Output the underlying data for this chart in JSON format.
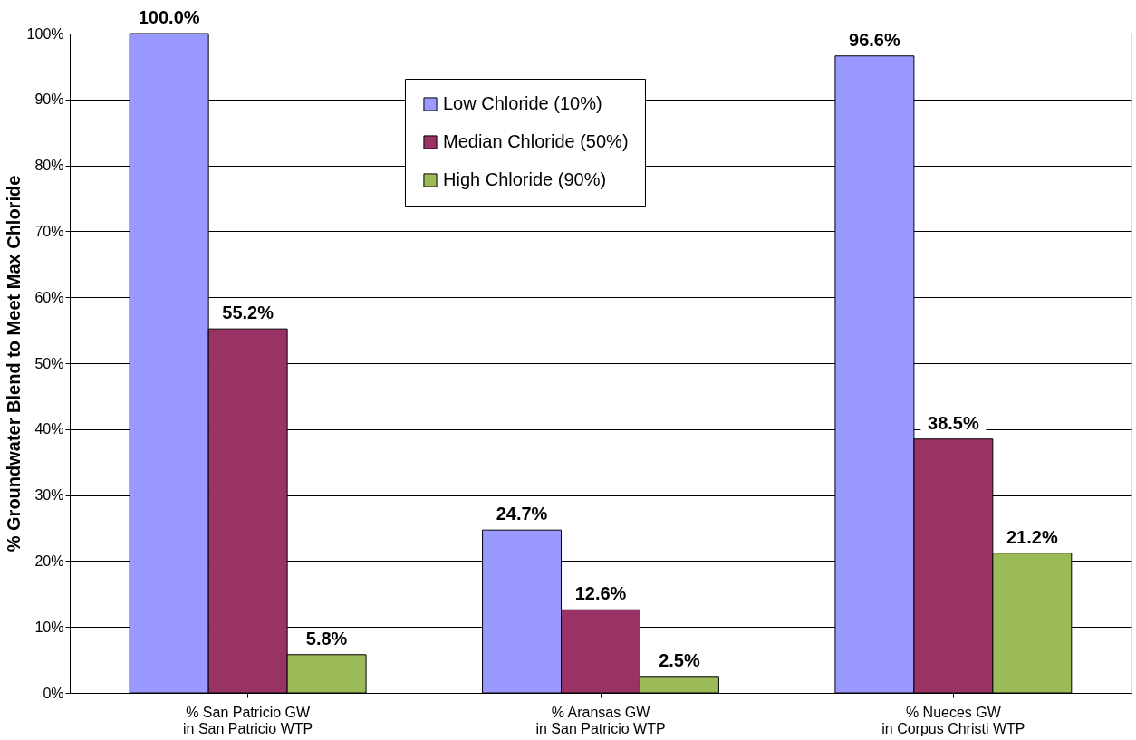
{
  "chart_data": {
    "type": "bar",
    "ylabel": "% Groundwater Blend to Meet Max Chloride",
    "categories": [
      "% San Patricio GW\nin San Patricio WTP",
      "% Aransas GW\nin San Patricio WTP",
      "% Nueces GW\nin Corpus Christi WTP"
    ],
    "series": [
      {
        "name": "Low Chloride (10%)",
        "color": "#9999ff",
        "values": [
          100.0,
          24.7,
          96.6
        ],
        "value_labels": [
          "100.0%",
          "24.7%",
          "96.6%"
        ]
      },
      {
        "name": "Median Chloride (50%)",
        "color": "#993366",
        "values": [
          55.2,
          12.6,
          38.5
        ],
        "value_labels": [
          "55.2%",
          "12.6%",
          "38.5%"
        ]
      },
      {
        "name": "High Chloride (90%)",
        "color": "#9bbb59",
        "values": [
          5.8,
          2.5,
          21.2
        ],
        "value_labels": [
          "5.8%",
          "2.5%",
          "21.2%"
        ]
      }
    ],
    "ylim": [
      0,
      100
    ],
    "yticks": [
      {
        "value": 0,
        "label": "0%"
      },
      {
        "value": 10,
        "label": "10%"
      },
      {
        "value": 20,
        "label": "20%"
      },
      {
        "value": 30,
        "label": "30%"
      },
      {
        "value": 40,
        "label": "40%"
      },
      {
        "value": 50,
        "label": "50%"
      },
      {
        "value": 60,
        "label": "60%"
      },
      {
        "value": 70,
        "label": "70%"
      },
      {
        "value": 80,
        "label": "80%"
      },
      {
        "value": 90,
        "label": "90%"
      },
      {
        "value": 100,
        "label": "100%"
      }
    ],
    "grid": "y",
    "legend": "top"
  }
}
